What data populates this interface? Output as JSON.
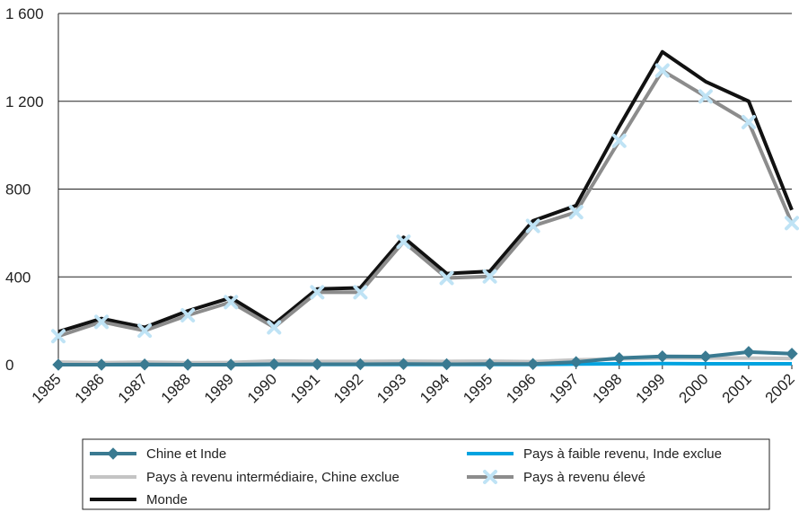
{
  "chart_data": {
    "type": "line",
    "title": "",
    "xlabel": "",
    "ylabel": "",
    "categories": [
      "1985",
      "1986",
      "1987",
      "1988",
      "1989",
      "1990",
      "1991",
      "1992",
      "1993",
      "1994",
      "1995",
      "1996",
      "1997",
      "1998",
      "1999",
      "2000",
      "2001",
      "2002"
    ],
    "ylim": [
      0,
      1600
    ],
    "yticks": [
      0,
      400,
      800,
      1200,
      1600
    ],
    "ytick_labels": [
      "0",
      "400",
      "800",
      "1 200",
      "1 600"
    ],
    "grid": "horizontal",
    "legend_position": "bottom",
    "series": [
      {
        "name": "Chine et Inde",
        "color": "#3a7a91",
        "marker": "diamond",
        "values": [
          0,
          0,
          1,
          0,
          0,
          2,
          2,
          2,
          3,
          2,
          3,
          3,
          12,
          30,
          38,
          37,
          58,
          50
        ]
      },
      {
        "name": "Pays à faible revenu, Inde exclue",
        "color": "#00a3e0",
        "marker": "none",
        "values": [
          0,
          0,
          0,
          0,
          0,
          1,
          1,
          1,
          1,
          1,
          1,
          1,
          3,
          4,
          5,
          4,
          4,
          4
        ]
      },
      {
        "name": "Pays à revenu intermédiaire, Chine exclue",
        "color": "#c4c4c4",
        "marker": "none",
        "values": [
          12,
          9,
          12,
          9,
          10,
          17,
          15,
          15,
          16,
          15,
          16,
          14,
          22,
          26,
          30,
          30,
          30,
          28
        ]
      },
      {
        "name": "Pays à revenu élevé",
        "color": "#8c8c8c",
        "marker": "x",
        "marker_color": "#bfe3f5",
        "values": [
          130,
          195,
          155,
          225,
          285,
          170,
          330,
          330,
          560,
          395,
          402,
          632,
          695,
          1020,
          1340,
          1222,
          1105,
          645
        ]
      },
      {
        "name": "Monde",
        "color": "#111111",
        "marker": "none",
        "values": [
          150,
          210,
          170,
          245,
          305,
          185,
          345,
          350,
          580,
          415,
          425,
          655,
          725,
          1085,
          1425,
          1290,
          1200,
          705
        ]
      }
    ],
    "legend_order": [
      "Chine et Inde",
      "Pays à faible revenu, Inde exclue",
      "Pays à revenu intermédiaire, Chine exclue",
      "Pays à revenu élevé",
      "Monde"
    ]
  }
}
